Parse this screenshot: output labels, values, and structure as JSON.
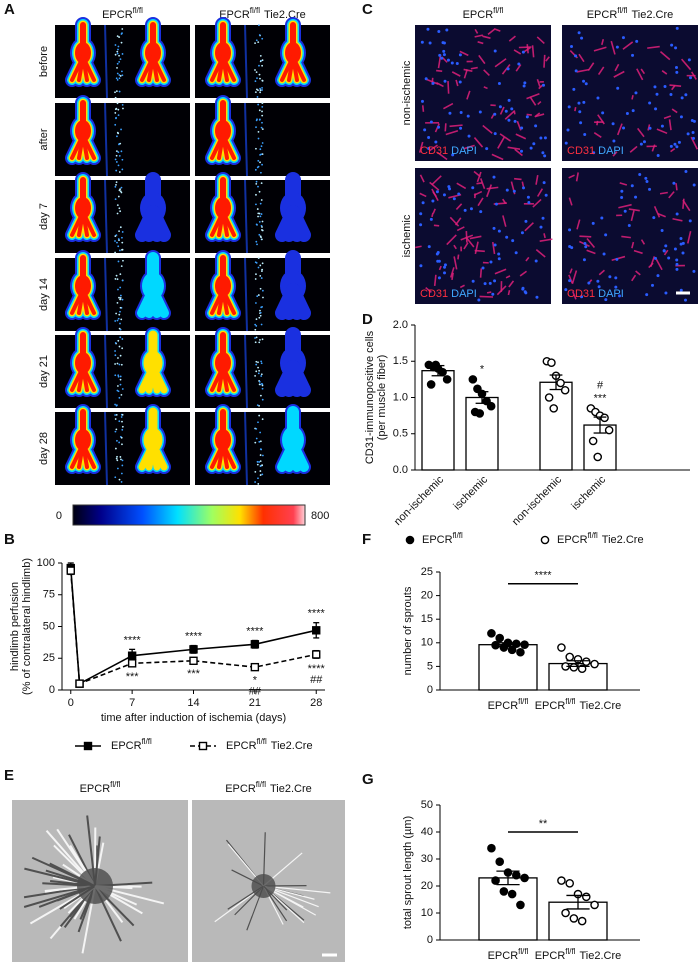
{
  "panels": {
    "A": {
      "label": "A",
      "columns": [
        [
          "EPCR",
          "fl/fl"
        ],
        [
          "EPCR",
          "fl/fl",
          "Tie2.Cre"
        ]
      ],
      "rows": [
        "before",
        "after",
        "day 7",
        "day 14",
        "day 21",
        "day 28"
      ],
      "colorbar": {
        "min": 0,
        "max": 800
      }
    },
    "C": {
      "label": "C",
      "columns": [
        [
          "EPCR",
          "fl/fl"
        ],
        [
          "EPCR",
          "fl/fl",
          "Tie2.Cre"
        ]
      ],
      "rows": [
        "non-ischemic",
        "ischemic"
      ],
      "stain": [
        "CD31",
        "DAPI"
      ]
    },
    "E": {
      "label": "E",
      "columns": [
        [
          "EPCR",
          "fl/fl"
        ],
        [
          "EPCR",
          "fl/fl",
          "Tie2.Cre"
        ]
      ]
    }
  },
  "chart_data": [
    {
      "panel": "B",
      "type": "line",
      "x_label": "time after induction of ischemia (days)",
      "y_label": [
        "hindlimb perfusion",
        "(% of contralateral hindlimb)"
      ],
      "x": [
        0,
        1,
        7,
        14,
        21,
        28
      ],
      "xlim": [
        -1,
        29
      ],
      "xticks": [
        0,
        7,
        14,
        21,
        28
      ],
      "ylim": [
        0,
        100
      ],
      "yticks": [
        0,
        25,
        50,
        75,
        100
      ],
      "series": [
        {
          "name": [
            "EPCR",
            "fl/fl"
          ],
          "color": "#000000",
          "dash": false,
          "marker": "filled",
          "values": [
            96,
            5,
            27,
            32,
            36,
            47
          ],
          "errors": [
            4,
            1,
            5,
            3,
            3,
            6
          ]
        },
        {
          "name": [
            "EPCR",
            "fl/fl",
            "Tie2.Cre"
          ],
          "color": "#000000",
          "dash": true,
          "marker": "open",
          "values": [
            94,
            5,
            21,
            23,
            18,
            28
          ],
          "errors": [
            3,
            1,
            2,
            2,
            2,
            3
          ]
        }
      ],
      "annotations": [
        {
          "x": 7,
          "above": [
            "****"
          ],
          "below": [
            "***"
          ]
        },
        {
          "x": 14,
          "above": [
            "****"
          ],
          "below": [
            "***"
          ]
        },
        {
          "x": 21,
          "above": [
            "****"
          ],
          "below": [
            "*",
            "##"
          ]
        },
        {
          "x": 28,
          "above": [
            "****"
          ],
          "below": [
            "****",
            "##"
          ]
        }
      ]
    },
    {
      "panel": "D",
      "type": "bar",
      "y_label": [
        "CD31-immunopositive cells",
        "(per muscle fiber)"
      ],
      "categories": [
        "non-ischemic",
        "ischemic",
        "non-ischemic",
        "ischemic"
      ],
      "values": [
        1.37,
        1.0,
        1.21,
        0.62
      ],
      "errors": [
        0.07,
        0.08,
        0.1,
        0.11
      ],
      "points": [
        [
          1.45,
          1.42,
          1.4,
          1.35,
          1.25,
          1.18,
          1.45
        ],
        [
          1.25,
          1.12,
          1.05,
          0.95,
          0.88,
          0.8,
          0.78
        ],
        [
          1.5,
          1.48,
          1.3,
          1.2,
          1.1,
          1.0,
          0.85
        ],
        [
          0.85,
          0.8,
          0.75,
          0.72,
          0.55,
          0.4,
          0.18
        ]
      ],
      "point_style": [
        "filled",
        "filled",
        "open",
        "open"
      ],
      "annotations": {
        "1": [
          "*"
        ],
        "3": [
          "#",
          "***"
        ]
      },
      "ylim": [
        0,
        2
      ],
      "yticks": [
        {
          "value": 0,
          "label": "0.0"
        },
        0.5,
        {
          "value": 1,
          "label": "1.0"
        },
        1.5,
        {
          "value": 2,
          "label": "2.0"
        }
      ],
      "color": "#ffffff"
    },
    {
      "panel": "F",
      "type": "bar",
      "legend": [
        {
          "name": [
            "EPCR",
            "fl/fl"
          ],
          "marker": "filled"
        },
        {
          "name": [
            "EPCR",
            "fl/fl",
            "Tie2.Cre"
          ],
          "marker": "open"
        }
      ],
      "y_label": [
        "number of sprouts"
      ],
      "categories": [
        [
          "EPCR",
          "fl/fl"
        ],
        [
          "EPCR",
          "fl/fl",
          "Tie2.Cre"
        ]
      ],
      "values": [
        9.6,
        5.6
      ],
      "errors": [
        0.4,
        0.6
      ],
      "points": [
        [
          12,
          11,
          10,
          9.8,
          9.6,
          9.5,
          9,
          8.5,
          8
        ],
        [
          9,
          7,
          6.5,
          6,
          5.5,
          5,
          4.8,
          4.5
        ]
      ],
      "point_style": [
        "filled",
        "open"
      ],
      "significance": {
        "text": "****",
        "level": 22.5
      },
      "ylim": [
        0,
        25
      ],
      "yticks": [
        0,
        5,
        10,
        15,
        20,
        25
      ],
      "color": "#ffffff"
    },
    {
      "panel": "G",
      "type": "bar",
      "y_label": [
        "total sprout length (µm)"
      ],
      "categories": [
        [
          "EPCR",
          "fl/fl"
        ],
        [
          "EPCR",
          "fl/fl",
          "Tie2.Cre"
        ]
      ],
      "values": [
        23,
        14
      ],
      "errors": [
        2.5,
        2.5
      ],
      "points": [
        [
          34,
          29,
          25,
          24,
          23,
          22,
          18,
          17,
          13
        ],
        [
          22,
          21,
          17,
          16,
          13,
          10,
          8,
          7
        ]
      ],
      "point_style": [
        "filled",
        "open"
      ],
      "significance": {
        "text": "**",
        "level": 40
      },
      "ylim": [
        0,
        50
      ],
      "yticks": [
        0,
        10,
        20,
        30,
        40,
        50
      ],
      "color": "#ffffff"
    }
  ]
}
